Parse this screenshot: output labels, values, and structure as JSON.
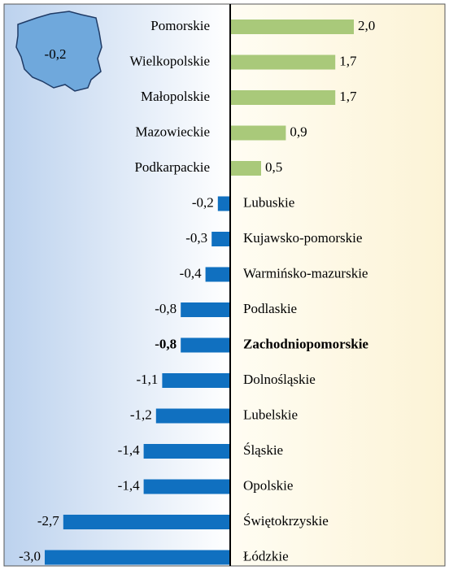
{
  "chart_data": {
    "type": "bar",
    "orientation": "horizontal",
    "annotation": "-0,2",
    "categories": [
      "Pomorskie",
      "Wielkopolskie",
      "Małopolskie",
      "Mazowieckie",
      "Podkarpackie",
      "Lubuskie",
      "Kujawsko-pomorskie",
      "Warmińsko-mazurskie",
      "Podlaskie",
      "Zachodniopomorskie",
      "Dolnośląskie",
      "Lubelskie",
      "Śląskie",
      "Opolskie",
      "Świętokrzyskie",
      "Łódzkie"
    ],
    "values": [
      2.0,
      1.7,
      1.7,
      0.9,
      0.5,
      -0.2,
      -0.3,
      -0.4,
      -0.8,
      -0.8,
      -1.1,
      -1.2,
      -1.4,
      -1.4,
      -2.7,
      -3.0
    ],
    "value_labels": [
      "2,0",
      "1,7",
      "1,7",
      "0,9",
      "0,5",
      "-0,2",
      "-0,3",
      "-0,4",
      "-0,8",
      "-0,8",
      "-1,1",
      "-1,2",
      "-1,4",
      "-1,4",
      "-2,7",
      "-3,0"
    ],
    "positive_color": "#a9c97a",
    "negative_color": "#1070c0",
    "highlight_category": "Zachodniopomorskie"
  }
}
